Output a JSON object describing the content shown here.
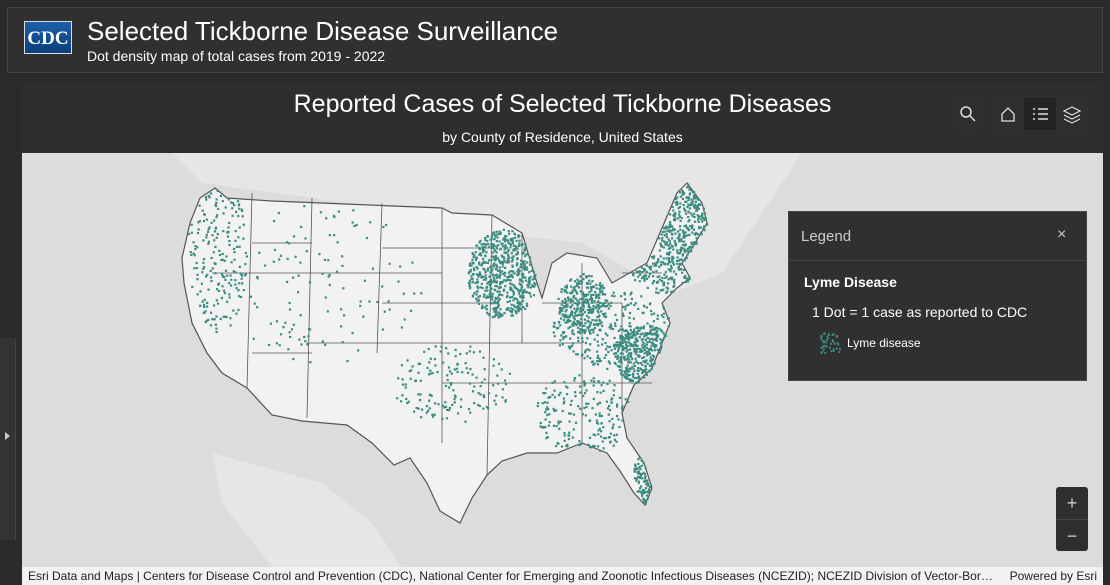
{
  "header": {
    "logo": "CDC",
    "title": "Selected Tickborne Disease Surveillance",
    "subtitle": "Dot density map of total cases from 2019 - 2022"
  },
  "map": {
    "title": "Reported Cases of Selected Tickborne Diseases",
    "subtitle": "by County of Residence, United States",
    "attribution": "Esri Data and Maps | Centers for Disease Control and Prevention (CDC), National Center for Emerging and Zoonotic Infectious Diseases (NCEZID); NCEZID Division of Vector-Bor…",
    "powered_by": "Powered by Esri"
  },
  "legend": {
    "title": "Legend",
    "layer": "Lyme Disease",
    "description": "1 Dot = 1 case as reported to CDC",
    "item": "Lyme disease"
  }
}
